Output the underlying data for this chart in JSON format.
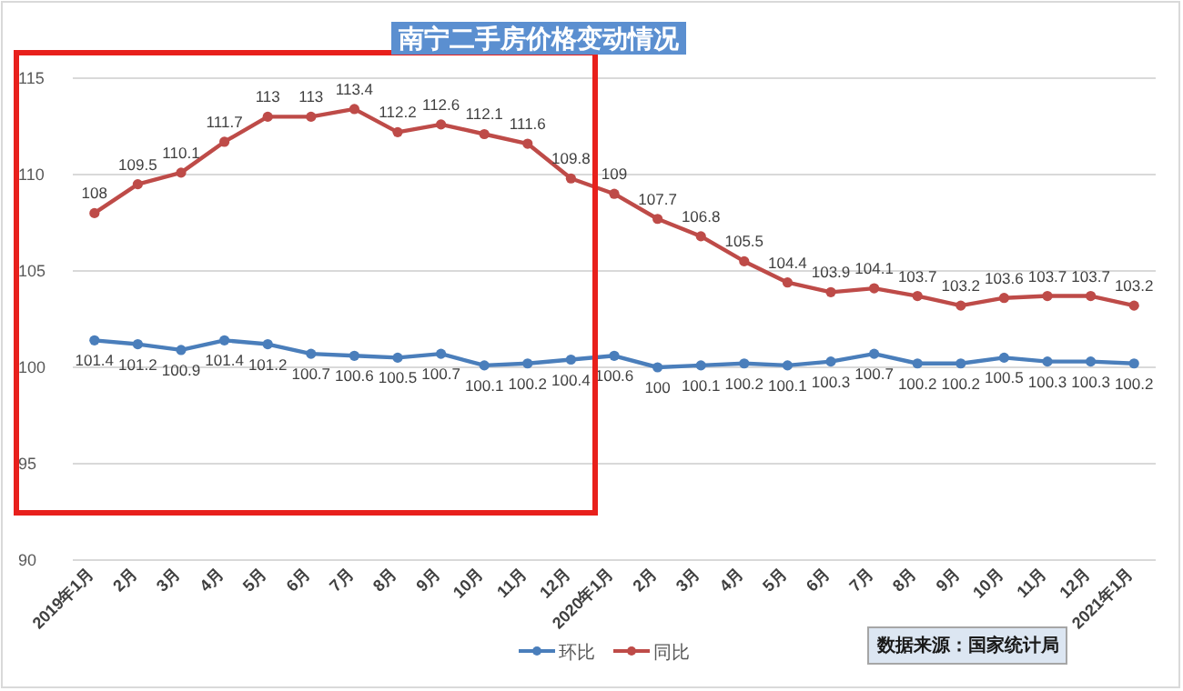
{
  "chart_data": {
    "type": "line",
    "title": "南宁二手房价格变动情况",
    "categories": [
      "2019年1月",
      "2月",
      "3月",
      "4月",
      "5月",
      "6月",
      "7月",
      "8月",
      "9月",
      "10月",
      "11月",
      "12月",
      "2020年1月",
      "2月",
      "3月",
      "4月",
      "5月",
      "6月",
      "7月",
      "8月",
      "9月",
      "10月",
      "11月",
      "12月",
      "2021年1月"
    ],
    "series": [
      {
        "name": "环比",
        "color": "#4a7ebb",
        "values": [
          101.4,
          101.2,
          100.9,
          101.4,
          101.2,
          100.7,
          100.6,
          100.5,
          100.7,
          100.1,
          100.2,
          100.4,
          100.6,
          100,
          100.1,
          100.2,
          100.1,
          100.3,
          100.7,
          100.2,
          100.2,
          100.5,
          100.3,
          100.3,
          100.2
        ]
      },
      {
        "name": "同比",
        "color": "#be4b48",
        "values": [
          108,
          109.5,
          110.1,
          111.7,
          113,
          113,
          113.4,
          112.2,
          112.6,
          112.1,
          111.6,
          109.8,
          109,
          107.7,
          106.8,
          105.5,
          104.4,
          103.9,
          104.1,
          103.7,
          103.2,
          103.6,
          103.7,
          103.7,
          103.2
        ]
      }
    ],
    "ylim": [
      90,
      115
    ],
    "yticks": [
      90,
      95,
      100,
      105,
      110,
      115
    ],
    "grid": "y",
    "legend": "bottom",
    "marker": "circle",
    "line_style": "solid",
    "data_labels": true,
    "annotations": [
      "数据来源：国家统计局"
    ]
  }
}
